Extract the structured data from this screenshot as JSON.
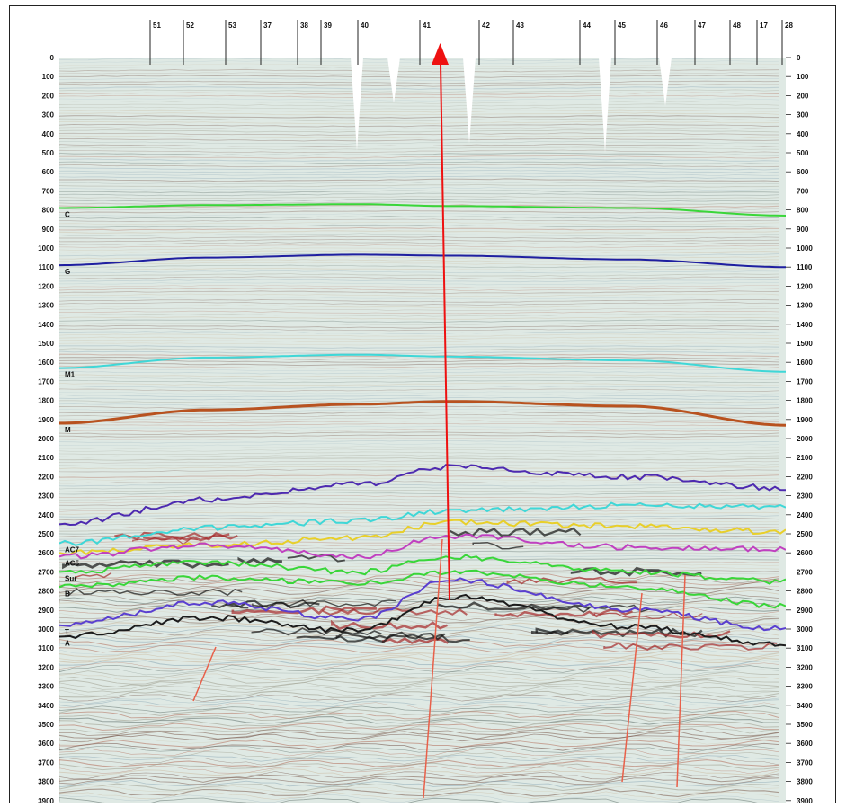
{
  "colors": {
    "section_bg": "#dfe9e4",
    "arrow": "#ee1111",
    "fault": "#e8604a"
  },
  "depth_axis": {
    "min": 0,
    "max": 3900,
    "step": 100,
    "labels": [
      "0",
      "100",
      "200",
      "300",
      "400",
      "500",
      "600",
      "700",
      "800",
      "900",
      "1000",
      "1100",
      "1200",
      "1300",
      "1400",
      "1500",
      "1600",
      "1700",
      "1800",
      "1900",
      "2000",
      "2100",
      "2200",
      "2300",
      "2400",
      "2500",
      "2600",
      "2700",
      "2800",
      "2900",
      "3000",
      "3100",
      "3200",
      "3300",
      "3400",
      "3500",
      "3600",
      "3700",
      "3800",
      "3900"
    ]
  },
  "wells": [
    {
      "label": "51"
    },
    {
      "label": "52"
    },
    {
      "label": "53"
    },
    {
      "label": "37"
    },
    {
      "label": "38"
    },
    {
      "label": "39"
    },
    {
      "label": "40"
    },
    {
      "label": "41"
    },
    {
      "label": "42"
    },
    {
      "label": "43"
    },
    {
      "label": "44"
    },
    {
      "label": "45"
    },
    {
      "label": "46"
    },
    {
      "label": "47"
    },
    {
      "label": "48"
    },
    {
      "label": "17"
    },
    {
      "label": "28"
    }
  ],
  "horizons": [
    {
      "label": "C",
      "color": "#39d639",
      "depths": [
        790,
        775,
        770,
        780,
        790,
        830
      ]
    },
    {
      "label": "G",
      "color": "#1f1fa0",
      "depths": [
        1090,
        1050,
        1035,
        1040,
        1060,
        1100
      ]
    },
    {
      "label": "M1",
      "color": "#3fd7d7",
      "depths": [
        1630,
        1575,
        1560,
        1570,
        1590,
        1650
      ]
    },
    {
      "label": "M",
      "color": "#b8521f",
      "depths": [
        1920,
        1850,
        1820,
        1805,
        1830,
        1930
      ]
    },
    {
      "label": "",
      "color": "#4d2ab0",
      "depths": [
        2450,
        2320,
        2240,
        2150,
        2200,
        2260
      ]
    },
    {
      "label": "AC7",
      "color": "#3fd7d7",
      "depths": [
        2550,
        2470,
        2430,
        2380,
        2350,
        2360
      ]
    },
    {
      "label": "",
      "color": "#e8cf2a",
      "depths": [
        2600,
        2560,
        2520,
        2440,
        2460,
        2490
      ]
    },
    {
      "label": "AC5",
      "color": "#c040c0",
      "depths": [
        2620,
        2560,
        2620,
        2510,
        2570,
        2580
      ]
    },
    {
      "label": "Sur",
      "color": "#39d639",
      "depths": [
        2700,
        2650,
        2700,
        2620,
        2700,
        2750
      ]
    },
    {
      "label": "B",
      "color": "#39d639",
      "depths": [
        2780,
        2730,
        2760,
        2700,
        2780,
        2880
      ]
    },
    {
      "label": "T",
      "color": "#5a3fd0",
      "depths": [
        2980,
        2860,
        2950,
        2740,
        2900,
        3000
      ]
    },
    {
      "label": "A",
      "color": "#1c1c1c",
      "depths": [
        3040,
        2940,
        3010,
        2830,
        2990,
        3080
      ]
    }
  ]
}
